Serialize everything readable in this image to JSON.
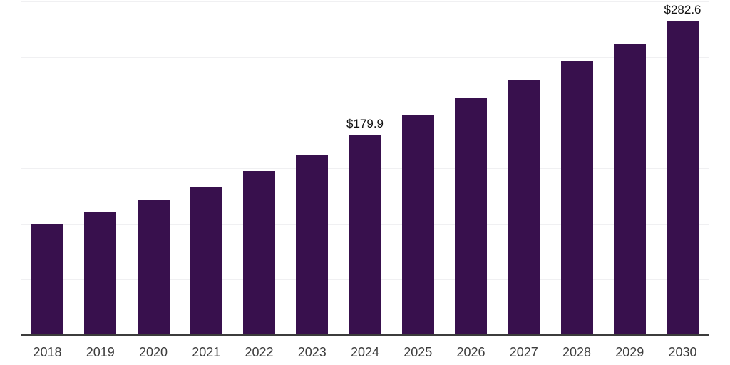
{
  "chart_data": {
    "type": "bar",
    "title": "",
    "xlabel": "",
    "ylabel": "",
    "categories": [
      "2018",
      "2019",
      "2020",
      "2021",
      "2022",
      "2023",
      "2024",
      "2025",
      "2026",
      "2027",
      "2028",
      "2029",
      "2030"
    ],
    "values": [
      100.0,
      110.2,
      122.0,
      133.5,
      147.6,
      161.6,
      179.9,
      197.4,
      213.4,
      229.4,
      246.7,
      261.4,
      282.6
    ],
    "annotations": [
      {
        "category": "2024",
        "text": "$179.9"
      },
      {
        "category": "2030",
        "text": "$282.6"
      }
    ],
    "ylim": [
      0,
      300
    ],
    "gridline_levels": [
      50,
      100,
      150,
      200,
      250,
      300
    ],
    "grid": "horizontal-faint",
    "legend_position": "none",
    "y_tick_labels_visible": false,
    "colors": {
      "bar": "#38104d",
      "axis_line": "#3c3c3c",
      "x_tick_label": "#3d3d3d",
      "value_label": "#111111",
      "gridline": "#f0f0f2",
      "background": "#ffffff"
    }
  }
}
